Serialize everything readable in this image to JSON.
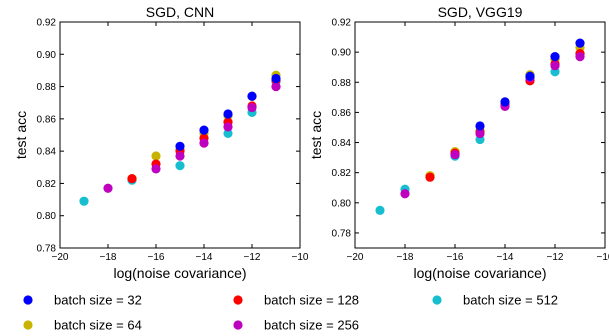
{
  "chart_data": [
    {
      "type": "scatter",
      "title": "SGD, CNN",
      "xlabel": "log(noise covariance)",
      "ylabel": "test acc",
      "xlim": [
        -20,
        -10
      ],
      "ylim": [
        0.78,
        0.92
      ],
      "xticks": [
        -20,
        -18,
        -16,
        -14,
        -12,
        -10
      ],
      "xtick_labels": [
        "−20",
        "−18",
        "−16",
        "−14",
        "−12",
        "−10"
      ],
      "yticks": [
        0.78,
        0.8,
        0.82,
        0.84,
        0.86,
        0.88,
        0.9,
        0.92
      ],
      "ytick_labels": [
        "0.78",
        "0.80",
        "0.82",
        "0.84",
        "0.86",
        "0.88",
        "0.90",
        "0.92"
      ],
      "grid": false,
      "series": [
        {
          "name": "batch size = 512",
          "color": "#17BECF",
          "x": [
            -19,
            -17,
            -15,
            -13,
            -12,
            -11
          ],
          "y": [
            0.809,
            0.822,
            0.831,
            0.851,
            0.864,
            0.883
          ]
        },
        {
          "name": "batch size = 64",
          "color": "#C8B400",
          "x": [
            -16,
            -15,
            -14,
            -13,
            -12,
            -11
          ],
          "y": [
            0.837,
            0.841,
            0.851,
            0.862,
            0.874,
            0.887
          ]
        },
        {
          "name": "batch size = 128",
          "color": "#FF0000",
          "x": [
            -17,
            -16,
            -15,
            -14,
            -13,
            -12,
            -11
          ],
          "y": [
            0.823,
            0.832,
            0.84,
            0.848,
            0.858,
            0.868,
            0.884
          ]
        },
        {
          "name": "batch size = 256",
          "color": "#BF00BF",
          "x": [
            -18,
            -16,
            -15,
            -14,
            -13,
            -12,
            -11
          ],
          "y": [
            0.817,
            0.829,
            0.837,
            0.845,
            0.855,
            0.867,
            0.88
          ]
        },
        {
          "name": "batch size = 32",
          "color": "#0000FF",
          "x": [
            -15,
            -14,
            -13,
            -12,
            -11
          ],
          "y": [
            0.843,
            0.853,
            0.863,
            0.874,
            0.885
          ]
        }
      ]
    },
    {
      "type": "scatter",
      "title": "SGD, VGG19",
      "xlabel": "log(noise covariance)",
      "ylabel": "test acc",
      "xlim": [
        -20,
        -10
      ],
      "ylim": [
        0.77,
        0.92
      ],
      "xticks": [
        -20,
        -18,
        -16,
        -14,
        -12,
        -10
      ],
      "xtick_labels": [
        "−20",
        "−18",
        "−16",
        "−14",
        "−12",
        "−10"
      ],
      "yticks": [
        0.78,
        0.8,
        0.82,
        0.84,
        0.86,
        0.88,
        0.9,
        0.92
      ],
      "ytick_labels": [
        "0.78",
        "0.80",
        "0.82",
        "0.84",
        "0.86",
        "0.88",
        "0.90",
        "0.92"
      ],
      "grid": false,
      "series": [
        {
          "name": "batch size = 512",
          "color": "#17BECF",
          "x": [
            -19,
            -18,
            -16,
            -15,
            -13,
            -12,
            -11
          ],
          "y": [
            0.795,
            0.809,
            0.831,
            0.842,
            0.881,
            0.887,
            0.899
          ]
        },
        {
          "name": "batch size = 64",
          "color": "#C8B400",
          "x": [
            -17,
            -16,
            -15,
            -14,
            -13,
            -12,
            -11
          ],
          "y": [
            0.818,
            0.834,
            0.848,
            0.866,
            0.885,
            0.895,
            0.903
          ]
        },
        {
          "name": "batch size = 128",
          "color": "#FF0000",
          "x": [
            -17,
            -16,
            -15,
            -14,
            -13,
            -12,
            -11
          ],
          "y": [
            0.817,
            0.833,
            0.847,
            0.865,
            0.881,
            0.892,
            0.899
          ]
        },
        {
          "name": "batch size = 256",
          "color": "#BF00BF",
          "x": [
            -18,
            -16,
            -15,
            -14,
            -13,
            -12,
            -11
          ],
          "y": [
            0.806,
            0.832,
            0.846,
            0.864,
            0.883,
            0.891,
            0.897
          ]
        },
        {
          "name": "batch size = 32",
          "color": "#0000FF",
          "x": [
            -15,
            -14,
            -13,
            -12,
            -11
          ],
          "y": [
            0.851,
            0.867,
            0.884,
            0.897,
            0.906
          ]
        }
      ]
    }
  ],
  "legend": {
    "placement": "bottom",
    "entries": [
      {
        "label": "batch size = 32",
        "color": "#0000FF"
      },
      {
        "label": "batch size = 128",
        "color": "#FF0000"
      },
      {
        "label": "batch size = 512",
        "color": "#17BECF"
      },
      {
        "label": "batch size = 64",
        "color": "#C8B400"
      },
      {
        "label": "batch size = 256",
        "color": "#BF00BF"
      }
    ]
  }
}
